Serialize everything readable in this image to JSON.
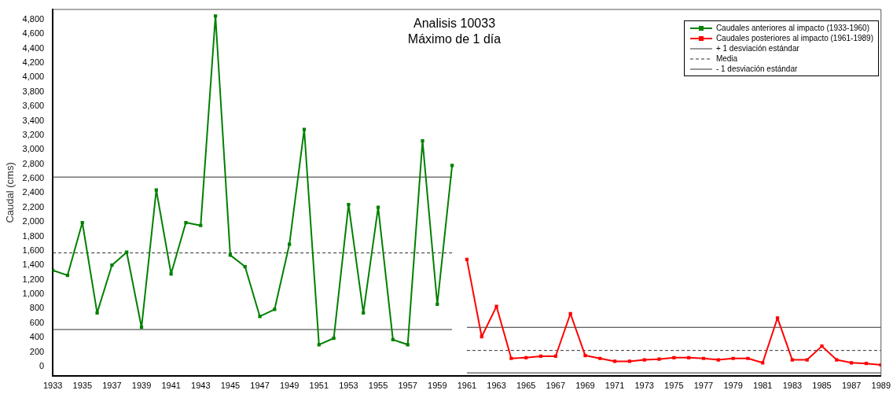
{
  "chart_data": {
    "type": "line",
    "title": "Analisis 10033",
    "subtitle": "Máximo de 1 día",
    "ylabel": "Caudal (cms)",
    "xlim": [
      1933,
      1989
    ],
    "xticks": [
      1933,
      1935,
      1937,
      1939,
      1941,
      1943,
      1945,
      1947,
      1949,
      1951,
      1953,
      1955,
      1957,
      1959,
      1961,
      1963,
      1965,
      1967,
      1969,
      1971,
      1973,
      1975,
      1977,
      1979,
      1981,
      1983,
      1985,
      1987,
      1989
    ],
    "ylim": [
      -130,
      4940
    ],
    "yticks": [
      0,
      200,
      400,
      600,
      800,
      {
        "value": 1000,
        "label": "1,000"
      },
      {
        "value": 1200,
        "label": "1,200"
      },
      {
        "value": 1400,
        "label": "1,400"
      },
      {
        "value": 1600,
        "label": "1,600"
      },
      {
        "value": 1800,
        "label": "1,800"
      },
      {
        "value": 2000,
        "label": "2,000"
      },
      {
        "value": 2200,
        "label": "2,200"
      },
      {
        "value": 2400,
        "label": "2,400"
      },
      {
        "value": 2600,
        "label": "2,600"
      },
      {
        "value": 2800,
        "label": "2,800"
      },
      {
        "value": 3000,
        "label": "3,000"
      },
      {
        "value": 3200,
        "label": "3,200"
      },
      {
        "value": 3400,
        "label": "3,400"
      },
      {
        "value": 3600,
        "label": "3,600"
      },
      {
        "value": 3800,
        "label": "3,800"
      },
      {
        "value": 4000,
        "label": "4,000"
      },
      {
        "value": 4200,
        "label": "4,200"
      },
      {
        "value": 4400,
        "label": "4,400"
      },
      {
        "value": 4600,
        "label": "4,600"
      },
      {
        "value": 4800,
        "label": "4,800"
      }
    ],
    "grid": false,
    "legend": "top right",
    "marker": "square",
    "line_style": "solid",
    "series": [
      {
        "name": "Caudales anteriores al impacto (1933-1960)",
        "color": "#008000",
        "x": [
          1933,
          1934,
          1935,
          1936,
          1937,
          1938,
          1939,
          1940,
          1941,
          1942,
          1943,
          1944,
          1945,
          1946,
          1947,
          1948,
          1949,
          1950,
          1951,
          1952,
          1953,
          1954,
          1955,
          1956,
          1957,
          1958,
          1959,
          1960
        ],
        "values": [
          1330,
          1260,
          1990,
          740,
          1400,
          1580,
          540,
          2440,
          1280,
          1990,
          1950,
          4850,
          1540,
          1380,
          690,
          790,
          1690,
          3280,
          300,
          390,
          2240,
          740,
          2200,
          370,
          300,
          3120,
          860,
          2780
        ]
      },
      {
        "name": "Caudales posteriores al impacto (1961-1989)",
        "color": "#ff0000",
        "x": [
          1961,
          1962,
          1963,
          1964,
          1965,
          1966,
          1967,
          1968,
          1969,
          1970,
          1971,
          1972,
          1973,
          1974,
          1975,
          1976,
          1977,
          1978,
          1979,
          1980,
          1981,
          1982,
          1983,
          1984,
          1985,
          1986,
          1987,
          1988,
          1989
        ],
        "values": [
          1480,
          410,
          830,
          110,
          120,
          140,
          140,
          730,
          150,
          110,
          70,
          70,
          90,
          100,
          120,
          120,
          110,
          90,
          110,
          110,
          50,
          670,
          90,
          90,
          280,
          90,
          50,
          40,
          20
        ]
      },
      {
        "name": "+ 1 desviación estándar",
        "color": "#303030",
        "marker": "none",
        "line_style": "solid",
        "x": [
          1933,
          1960,
          1960.5,
          1961,
          1989
        ],
        "values": [
          2620,
          2620,
          null,
          540,
          540
        ]
      },
      {
        "name": "Media",
        "color": "#303030",
        "marker": "none",
        "line_style": "dashed",
        "x": [
          1933,
          1960,
          1960.5,
          1961,
          1989
        ],
        "values": [
          1570,
          1570,
          null,
          220,
          220
        ]
      },
      {
        "name": "- 1 desviación estándar",
        "color": "#303030",
        "marker": "none",
        "line_style": "solid",
        "x": [
          1933,
          1960,
          1960.5,
          1961,
          1989
        ],
        "values": [
          510,
          510,
          null,
          -90,
          -90
        ]
      }
    ]
  }
}
